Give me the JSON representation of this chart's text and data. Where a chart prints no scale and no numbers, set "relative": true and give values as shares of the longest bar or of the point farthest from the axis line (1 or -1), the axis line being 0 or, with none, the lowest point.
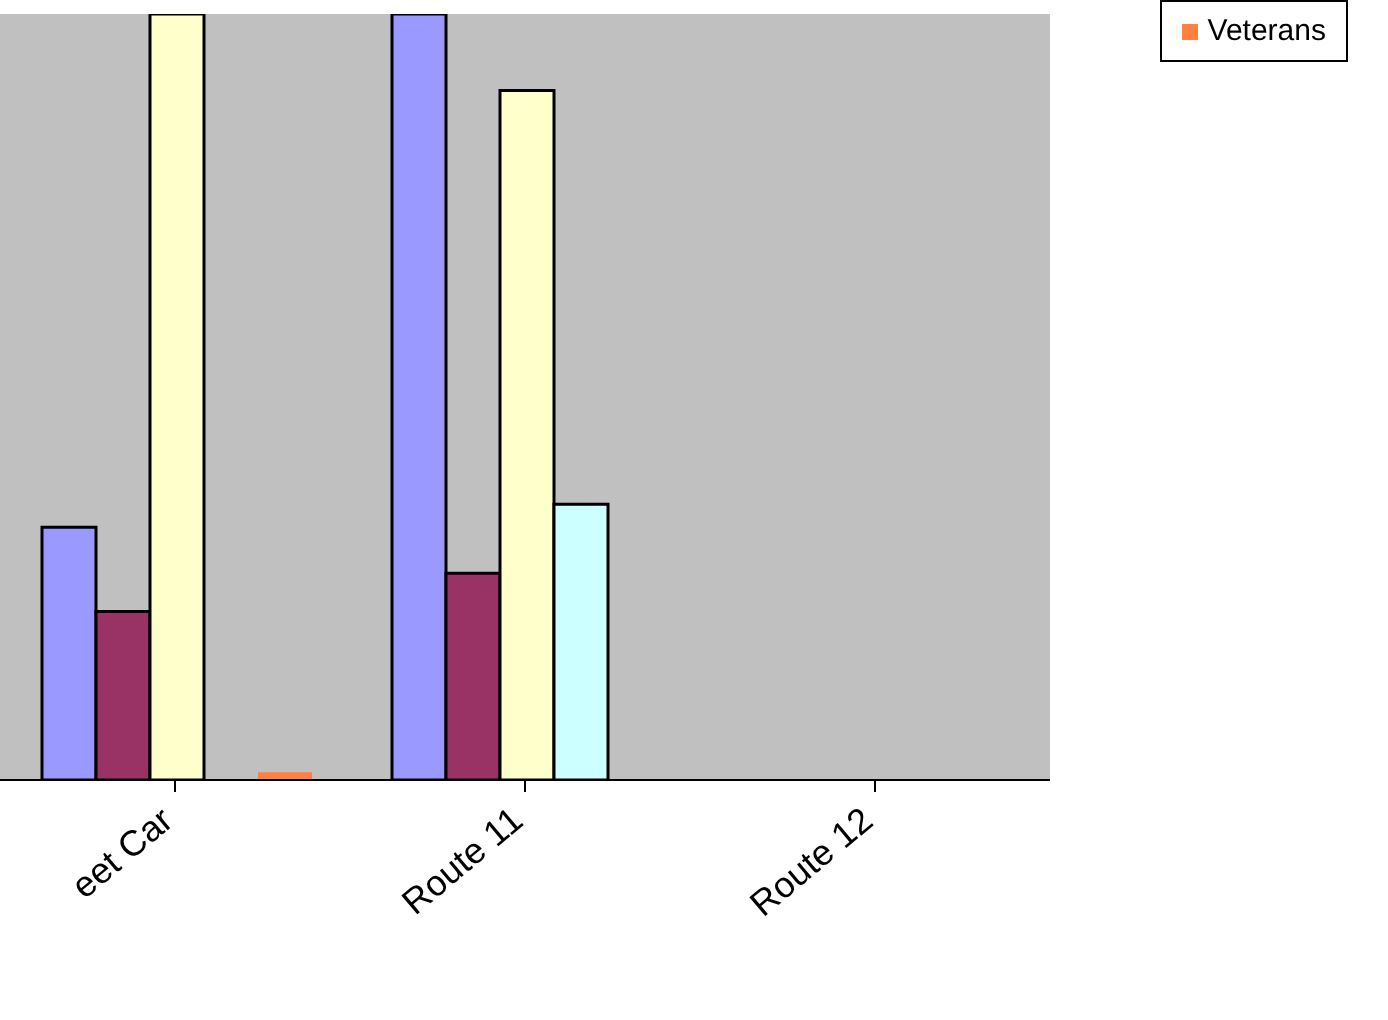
{
  "chart_data": {
    "type": "bar",
    "relative": true,
    "categories": [
      "eet Car",
      "Route 11",
      "Route 12"
    ],
    "series": [
      {
        "color": "#9999ff",
        "values": [
          0.33,
          1,
          0
        ]
      },
      {
        "color": "#993366",
        "values": [
          0.22,
          0.27,
          0
        ]
      },
      {
        "color": "#ffffcc",
        "values": [
          1,
          0.9,
          0
        ]
      },
      {
        "color": "#ccffff",
        "values": [
          0,
          0.36,
          0
        ]
      },
      {
        "name": "Veterans",
        "color": "#ff8040",
        "values": [
          0.01,
          0,
          0
        ]
      }
    ],
    "legend": "top right"
  }
}
